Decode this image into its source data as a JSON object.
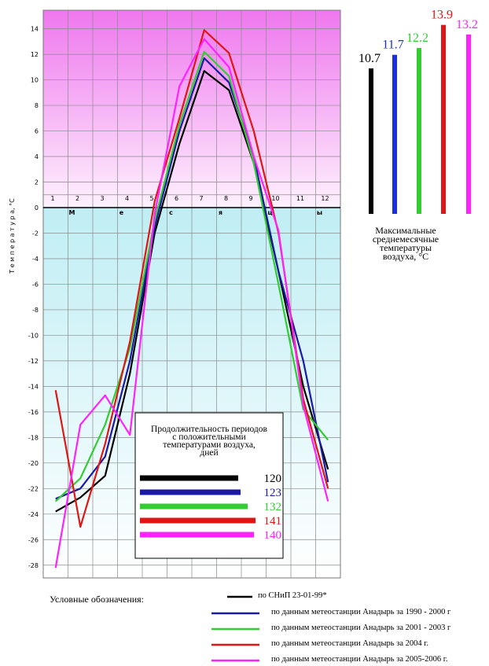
{
  "chart_data": {
    "type": "line",
    "ylabel": "Т е м п е р а т у р а,  °С",
    "x": [
      1,
      2,
      3,
      4,
      5,
      6,
      7,
      8,
      9,
      10,
      11,
      12
    ],
    "month_numbers": [
      "1",
      "2",
      "3",
      "4",
      "5",
      "6",
      "7",
      "8",
      "9",
      "10",
      "11",
      "12"
    ],
    "month_letters": [
      "М",
      "е",
      "с",
      "я",
      "ц",
      "ы"
    ],
    "ylim": [
      -29,
      16
    ],
    "yticks": [
      -28,
      -26,
      -24,
      -22,
      -20,
      -18,
      -16,
      -14,
      -12,
      -10,
      -8,
      -6,
      -4,
      -2,
      0,
      2,
      4,
      6,
      8,
      10,
      12,
      14
    ],
    "grid": true,
    "series": [
      {
        "name": "по СНиП 23-01-99*",
        "color": "#000000",
        "values": [
          -23.8,
          -22.7,
          -21.0,
          -13.0,
          -2.0,
          5.0,
          10.7,
          9.2,
          3.5,
          -5.0,
          -14.0,
          -20.5
        ]
      },
      {
        "name": "по данным метеостанции Анадырь за 1990 - 2000 г",
        "color": "#1a1aa6",
        "values": [
          -22.8,
          -22.0,
          -19.5,
          -12.0,
          -1.5,
          6.0,
          11.7,
          9.8,
          4.0,
          -5.0,
          -12.0,
          -21.5
        ]
      },
      {
        "name": "по данным метеостанции Анадырь за 2001 - 2003 г",
        "color": "#33cc33",
        "values": [
          -23.0,
          -21.2,
          -17.0,
          -11.0,
          -1.0,
          6.5,
          12.2,
          10.3,
          3.5,
          -6.0,
          -15.8,
          -18.2
        ]
      },
      {
        "name": "по данным метеостанции Анадырь за  2004 г.",
        "color": "#e01515",
        "values": [
          -14.3,
          -25.0,
          -18.5,
          -10.5,
          0.5,
          7.0,
          13.9,
          12.1,
          6.0,
          -2.0,
          -15.0,
          -22.0
        ]
      },
      {
        "name": "по данным метеостанции Анадырь за  2005-2006 г.",
        "color": "#ff22ff",
        "values": [
          -28.2,
          -17.0,
          -14.7,
          -17.8,
          -0.5,
          9.5,
          13.2,
          11.0,
          4.0,
          -1.8,
          -15.5,
          -23.0
        ]
      }
    ],
    "inset": {
      "title": "Продолжительность периодов с положительными температурами воздуха, дней",
      "values": [
        "120",
        "123",
        "132",
        "141",
        "140"
      ]
    },
    "max_bars": {
      "values": [
        10.7,
        11.7,
        12.2,
        13.9,
        13.2
      ],
      "labels": [
        "10.7",
        "11.7",
        "12.2",
        "13.9",
        "13.2"
      ],
      "caption": "Максимальные среднемесячные температуры воздуха, °С"
    },
    "legend_title": "Условные обозначения:"
  }
}
